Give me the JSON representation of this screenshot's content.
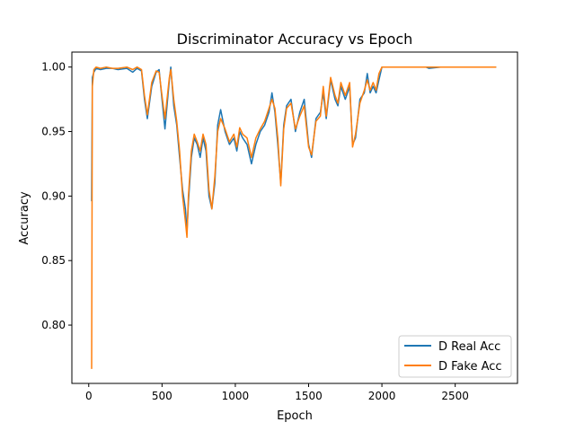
{
  "chart_data": {
    "type": "line",
    "title": "Discriminator Accuracy vs Epoch",
    "xlabel": "Epoch",
    "ylabel": "Accuracy",
    "xlim": [
      -115,
      2925
    ],
    "ylim": [
      0.7548,
      1.0116
    ],
    "xticks": [
      0,
      500,
      1000,
      1500,
      2000,
      2500
    ],
    "xtick_labels": [
      "0",
      "500",
      "1000",
      "1500",
      "2000",
      "2500"
    ],
    "yticks": [
      0.8,
      0.85,
      0.9,
      0.95,
      1.0
    ],
    "ytick_labels": [
      "0.80",
      "0.85",
      "0.90",
      "0.95",
      "1.00"
    ],
    "grid": false,
    "legend_position": "lower-right",
    "series": [
      {
        "name": "D Real Acc",
        "color": "#1f77b4",
        "x": [
          20,
          25,
          35,
          50,
          80,
          120,
          160,
          200,
          260,
          300,
          330,
          360,
          380,
          400,
          430,
          460,
          480,
          500,
          520,
          550,
          560,
          580,
          600,
          620,
          640,
          660,
          670,
          680,
          700,
          720,
          740,
          760,
          780,
          800,
          820,
          840,
          860,
          880,
          900,
          930,
          960,
          990,
          1010,
          1030,
          1050,
          1080,
          1110,
          1140,
          1170,
          1200,
          1230,
          1250,
          1270,
          1290,
          1310,
          1330,
          1350,
          1380,
          1410,
          1440,
          1470,
          1500,
          1520,
          1550,
          1580,
          1600,
          1620,
          1650,
          1680,
          1700,
          1720,
          1750,
          1780,
          1800,
          1820,
          1850,
          1880,
          1900,
          1920,
          1940,
          1960,
          1980,
          2000,
          2030,
          2100,
          2200,
          2300,
          2320,
          2400,
          2500,
          2600,
          2700,
          2780
        ],
        "y": [
          0.896,
          0.992,
          0.996,
          0.999,
          0.998,
          0.999,
          0.999,
          0.998,
          0.999,
          0.996,
          0.999,
          0.997,
          0.975,
          0.96,
          0.985,
          0.996,
          0.998,
          0.975,
          0.952,
          0.99,
          1.0,
          0.97,
          0.955,
          0.93,
          0.905,
          0.89,
          0.872,
          0.895,
          0.93,
          0.945,
          0.94,
          0.93,
          0.945,
          0.935,
          0.9,
          0.89,
          0.91,
          0.955,
          0.967,
          0.95,
          0.94,
          0.945,
          0.935,
          0.95,
          0.945,
          0.94,
          0.925,
          0.94,
          0.95,
          0.955,
          0.965,
          0.98,
          0.965,
          0.94,
          0.91,
          0.955,
          0.97,
          0.975,
          0.95,
          0.965,
          0.975,
          0.94,
          0.93,
          0.96,
          0.965,
          0.98,
          0.96,
          0.99,
          0.975,
          0.97,
          0.985,
          0.975,
          0.985,
          0.94,
          0.945,
          0.975,
          0.98,
          0.995,
          0.98,
          0.985,
          0.98,
          0.99,
          1.0,
          1.0,
          1.0,
          1.0,
          1.0,
          0.999,
          1.0,
          1.0,
          1.0,
          1.0,
          1.0
        ]
      },
      {
        "name": "D Fake Acc",
        "color": "#ff7f0e",
        "x": [
          20,
          25,
          35,
          50,
          80,
          120,
          160,
          200,
          260,
          300,
          330,
          360,
          380,
          400,
          430,
          460,
          480,
          500,
          520,
          550,
          560,
          580,
          600,
          620,
          640,
          660,
          670,
          680,
          700,
          720,
          740,
          760,
          780,
          800,
          820,
          840,
          860,
          880,
          900,
          930,
          960,
          990,
          1010,
          1030,
          1050,
          1080,
          1110,
          1140,
          1170,
          1200,
          1230,
          1250,
          1270,
          1290,
          1310,
          1330,
          1350,
          1380,
          1410,
          1440,
          1470,
          1500,
          1520,
          1550,
          1580,
          1600,
          1620,
          1650,
          1680,
          1700,
          1720,
          1750,
          1780,
          1800,
          1820,
          1850,
          1880,
          1900,
          1920,
          1940,
          1960,
          1980,
          2000,
          2030,
          2100,
          2200,
          2300,
          2320,
          2400,
          2500,
          2600,
          2700,
          2780
        ],
        "y": [
          0.766,
          0.985,
          0.998,
          1.0,
          0.999,
          1.0,
          0.999,
          0.999,
          1.0,
          0.998,
          1.0,
          0.998,
          0.978,
          0.963,
          0.988,
          0.997,
          0.996,
          0.978,
          0.96,
          0.992,
          0.998,
          0.975,
          0.958,
          0.935,
          0.9,
          0.88,
          0.868,
          0.9,
          0.935,
          0.948,
          0.942,
          0.935,
          0.948,
          0.94,
          0.905,
          0.89,
          0.915,
          0.95,
          0.96,
          0.952,
          0.942,
          0.948,
          0.938,
          0.953,
          0.948,
          0.945,
          0.93,
          0.945,
          0.952,
          0.958,
          0.968,
          0.975,
          0.968,
          0.945,
          0.908,
          0.952,
          0.968,
          0.972,
          0.952,
          0.962,
          0.97,
          0.938,
          0.932,
          0.958,
          0.962,
          0.985,
          0.962,
          0.992,
          0.978,
          0.972,
          0.988,
          0.978,
          0.988,
          0.938,
          0.948,
          0.972,
          0.982,
          0.99,
          0.982,
          0.988,
          0.982,
          0.995,
          1.0,
          1.0,
          1.0,
          1.0,
          1.0,
          1.0,
          1.0,
          1.0,
          1.0,
          1.0,
          1.0
        ]
      }
    ]
  }
}
